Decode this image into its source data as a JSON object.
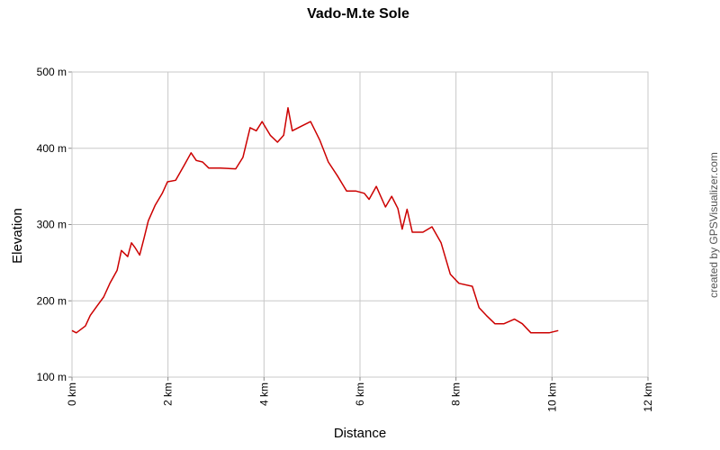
{
  "chart_data": {
    "type": "line",
    "title": "Vado-M.te Sole",
    "x_label": "Distance",
    "y_label": "Elevation",
    "credit": "created by GPSVisualizer.com",
    "xlim": [
      0,
      12
    ],
    "ylim": [
      100,
      500
    ],
    "xticks": [
      {
        "value": 0,
        "label": "0 km"
      },
      {
        "value": 2,
        "label": "2 km"
      },
      {
        "value": 4,
        "label": "4 km"
      },
      {
        "value": 6,
        "label": "6 km"
      },
      {
        "value": 8,
        "label": "8 km"
      },
      {
        "value": 10,
        "label": "10 km"
      },
      {
        "value": 12,
        "label": "12 km"
      }
    ],
    "yticks": [
      {
        "value": 100,
        "label": "100 m"
      },
      {
        "value": 200,
        "label": "200 m"
      },
      {
        "value": 300,
        "label": "300 m"
      },
      {
        "value": 400,
        "label": "400 m"
      },
      {
        "value": 500,
        "label": "500 m"
      }
    ],
    "grid": true,
    "series": [
      {
        "color": "#cc0000",
        "x": [
          0,
          0.09,
          0.28,
          0.38,
          0.52,
          0.66,
          0.79,
          0.94,
          1.03,
          1.16,
          1.24,
          1.31,
          1.41,
          1.5,
          1.59,
          1.73,
          1.88,
          1.99,
          2.16,
          2.34,
          2.48,
          2.59,
          2.72,
          2.85,
          3.09,
          3.41,
          3.56,
          3.71,
          3.84,
          3.96,
          4.13,
          4.28,
          4.41,
          4.5,
          4.59,
          4.78,
          4.97,
          5.16,
          5.34,
          5.53,
          5.72,
          5.91,
          6.09,
          6.19,
          6.34,
          6.53,
          6.66,
          6.79,
          6.88,
          6.98,
          7.09,
          7.31,
          7.5,
          7.69,
          7.88,
          8.06,
          8.34,
          8.48,
          8.63,
          8.81,
          9.0,
          9.22,
          9.38,
          9.56,
          9.94,
          10.13
        ],
        "values": [
          161,
          158,
          167,
          181,
          193,
          205,
          223,
          240,
          266,
          258,
          276,
          270,
          260,
          282,
          305,
          325,
          341,
          356,
          358,
          378,
          394,
          384,
          382,
          374,
          374,
          373,
          388,
          427,
          423,
          435,
          417,
          408,
          417,
          453,
          423,
          429,
          435,
          411,
          382,
          364,
          344,
          344,
          341,
          333,
          350,
          323,
          337,
          321,
          294,
          320,
          290,
          290,
          297,
          276,
          235,
          223,
          219,
          191,
          181,
          170,
          170,
          176,
          170,
          158,
          158,
          161
        ]
      }
    ]
  }
}
